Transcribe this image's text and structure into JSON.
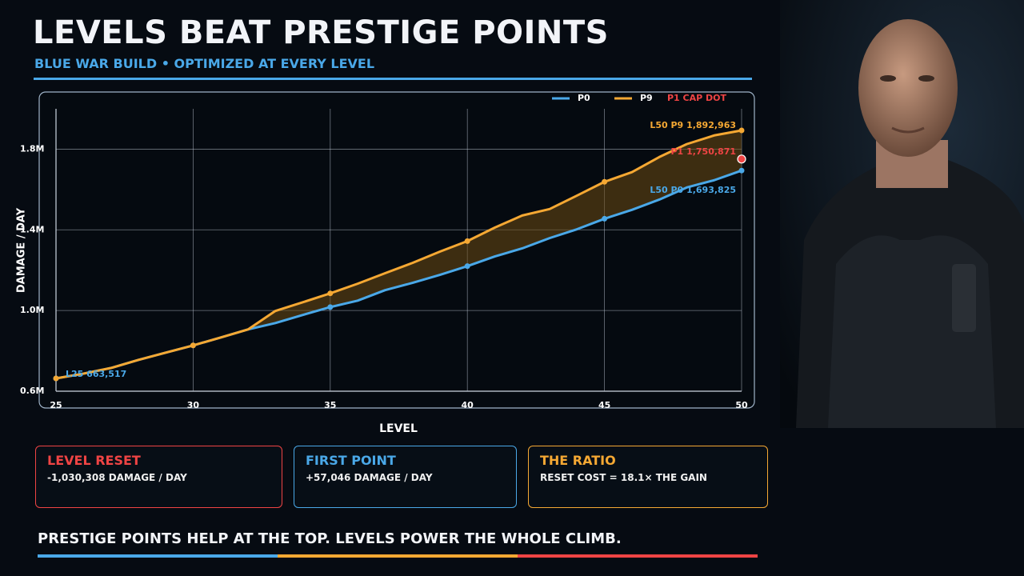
{
  "header": {
    "title": "LEVELS BEAT PRESTIGE POINTS",
    "subtitle": "BLUE WAR BUILD • OPTIMIZED AT EVERY LEVEL"
  },
  "chart_data": {
    "type": "line",
    "x_label": "LEVEL",
    "y_label": "DAMAGE / DAY",
    "x": [
      25,
      26,
      27,
      28,
      29,
      30,
      31,
      32,
      33,
      34,
      35,
      36,
      37,
      38,
      39,
      40,
      41,
      42,
      43,
      44,
      45,
      46,
      47,
      48,
      49,
      50
    ],
    "xlim": [
      25,
      50
    ],
    "xticks": [
      25,
      30,
      35,
      40,
      45,
      50
    ],
    "ylim": [
      600000,
      2000000
    ],
    "yticks": [
      {
        "value": 600000,
        "label": "0.6M"
      },
      {
        "value": 1000000,
        "label": "1.0M"
      },
      {
        "value": 1400000,
        "label": "1.4M"
      },
      {
        "value": 1800000,
        "label": "1.8M"
      }
    ],
    "grid": true,
    "legend": "top-right",
    "gap_fill": "#6b4a12",
    "series": [
      {
        "name": "P0",
        "color": "#4aa8e8",
        "values": [
          663517,
          687000,
          715000,
          755000,
          791000,
          827000,
          866000,
          906000,
          938000,
          978000,
          1017000,
          1049000,
          1101000,
          1137000,
          1177000,
          1220000,
          1268000,
          1308000,
          1359000,
          1403000,
          1455000,
          1499000,
          1550000,
          1610000,
          1646000,
          1693825
        ],
        "point_tags": [
          "L25",
          null,
          null,
          null,
          null,
          null,
          null,
          null,
          null,
          null,
          null,
          null,
          null,
          null,
          null,
          null,
          null,
          null,
          null,
          null,
          null,
          null,
          null,
          null,
          null,
          "L50 P0"
        ],
        "value_labels": [
          "663,517",
          null,
          null,
          null,
          null,
          null,
          null,
          null,
          null,
          null,
          null,
          null,
          null,
          null,
          null,
          null,
          null,
          null,
          null,
          null,
          null,
          null,
          null,
          null,
          null,
          "1,693,825"
        ]
      },
      {
        "name": "P9",
        "color": "#f5a833",
        "values": [
          663517,
          687000,
          715000,
          755000,
          791000,
          827000,
          866000,
          906000,
          998000,
          1041000,
          1085000,
          1133000,
          1185000,
          1236000,
          1292000,
          1344000,
          1411000,
          1471000,
          1503000,
          1570000,
          1638000,
          1686000,
          1761000,
          1825000,
          1868000,
          1892963
        ],
        "point_tags": [
          null,
          null,
          null,
          null,
          null,
          null,
          null,
          null,
          null,
          null,
          null,
          null,
          null,
          null,
          null,
          null,
          null,
          null,
          null,
          null,
          null,
          null,
          null,
          null,
          null,
          "L50 P9"
        ],
        "value_labels": [
          null,
          null,
          null,
          null,
          null,
          null,
          null,
          null,
          null,
          null,
          null,
          null,
          null,
          null,
          null,
          null,
          null,
          null,
          null,
          null,
          null,
          null,
          null,
          null,
          null,
          "1,892,963"
        ]
      }
    ],
    "cap_dot": {
      "name": "P1 CAP DOT",
      "tag": "P1",
      "x": 50,
      "value": 1750871,
      "value_label": "1,750,871",
      "color": "#ef4444"
    }
  },
  "cards": [
    {
      "title": "LEVEL RESET",
      "text": "-1,030,308 DAMAGE / DAY",
      "color": "#ef4444"
    },
    {
      "title": "FIRST POINT",
      "text": "+57,046 DAMAGE / DAY",
      "color": "#4aa8e8"
    },
    {
      "title": "THE RATIO",
      "text": "RESET COST = 18.1× THE GAIN",
      "color": "#f5a833"
    }
  ],
  "footer": "PRESTIGE POINTS HELP AT THE TOP. LEVELS POWER THE WHOLE CLIMB."
}
